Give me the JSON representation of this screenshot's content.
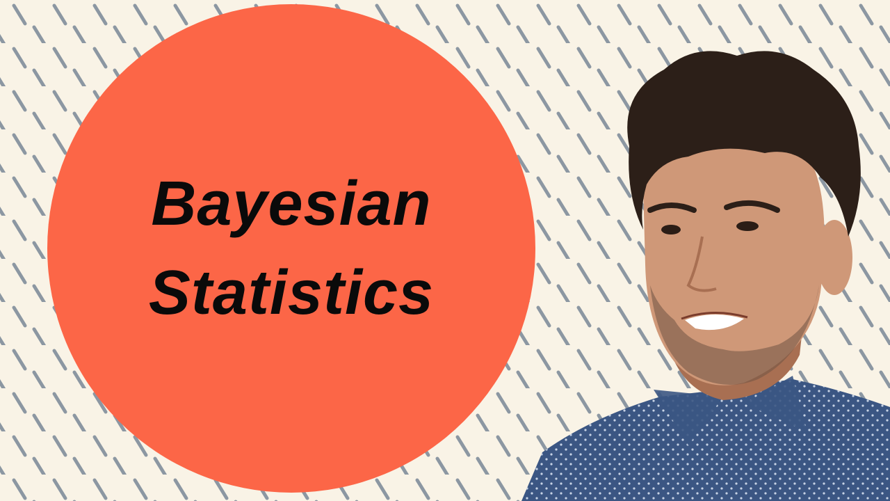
{
  "thumbnail": {
    "title_lines": [
      "Bayesian",
      "Statistics"
    ]
  },
  "colors": {
    "background": "#f9f3e6",
    "dash": "#8c97a2",
    "circle": "#fc6647",
    "text": "#0a0a0a",
    "hair": "#2c1f18",
    "skin": "#cf9878",
    "skin_shadow": "#a86f52",
    "beard": "#6f5344",
    "shirt": "#3b5683",
    "shirt_dots": "#c7d3e6"
  },
  "icons": {
    "background": "diagonal-dash-pattern",
    "portrait": "person-portrait"
  }
}
